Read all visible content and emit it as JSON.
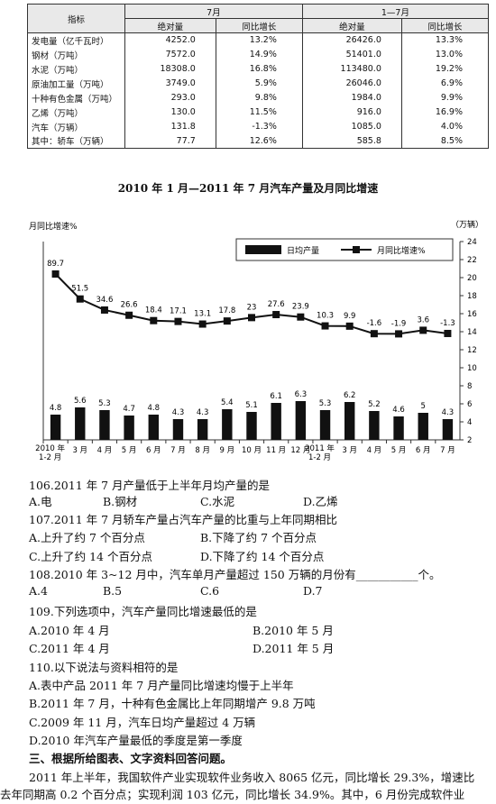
{
  "table": {
    "headers": {
      "indicator": "指标",
      "july": "7月",
      "jan_jul": "1—7月",
      "absolute": "绝对量",
      "yoy": "同比增长"
    },
    "rows": [
      {
        "name": "发电量（亿千瓦时）",
        "jul_abs": "4252.0",
        "jul_yoy": "13.2%",
        "ytd_abs": "26426.0",
        "ytd_yoy": "13.3%"
      },
      {
        "name": "钢材（万吨）",
        "jul_abs": "7572.0",
        "jul_yoy": "14.9%",
        "ytd_abs": "51401.0",
        "ytd_yoy": "13.0%"
      },
      {
        "name": "水泥（万吨）",
        "jul_abs": "18308.0",
        "jul_yoy": "16.8%",
        "ytd_abs": "113480.0",
        "ytd_yoy": "19.2%"
      },
      {
        "name": "原油加工量（万吨）",
        "jul_abs": "3749.0",
        "jul_yoy": "5.9%",
        "ytd_abs": "26046.0",
        "ytd_yoy": "6.9%"
      },
      {
        "name": "十种有色金属（万吨）",
        "jul_abs": "293.0",
        "jul_yoy": "9.8%",
        "ytd_abs": "1984.0",
        "ytd_yoy": "9.9%"
      },
      {
        "name": "乙烯（万吨）",
        "jul_abs": "130.0",
        "jul_yoy": "11.5%",
        "ytd_abs": "916.0",
        "ytd_yoy": "16.9%"
      },
      {
        "name": "汽车（万辆）",
        "jul_abs": "131.8",
        "jul_yoy": "-1.3%",
        "ytd_abs": "1085.0",
        "ytd_yoy": "4.0%"
      },
      {
        "name": "其中：轿车（万辆）",
        "jul_abs": "77.7",
        "jul_yoy": "12.6%",
        "ytd_abs": "585.8",
        "ytd_yoy": "8.5%"
      }
    ]
  },
  "chart_title": "2010 年 1 月—2011 年 7 月汽车产量及月同比增速",
  "chart_data": {
    "type": "bar",
    "ylabel_left": "月同比增速%",
    "ylabel_right": "（万辆）",
    "ylim_right": [
      2,
      24
    ],
    "yticks_right": [
      "2",
      "4",
      "6",
      "8",
      "10",
      "12",
      "14",
      "16",
      "18",
      "20",
      "22",
      "24"
    ],
    "categories": [
      [
        "2010 年",
        "1-2 月"
      ],
      [
        "3 月"
      ],
      [
        "4 月"
      ],
      [
        "5 月"
      ],
      [
        "6 月"
      ],
      [
        "7 月"
      ],
      [
        "8 月"
      ],
      [
        "9 月"
      ],
      [
        "10 月"
      ],
      [
        "11 月"
      ],
      [
        "12 月"
      ],
      [
        "2011 年",
        "1-2 月"
      ],
      [
        "3 月"
      ],
      [
        "4 月"
      ],
      [
        "5 月"
      ],
      [
        "6 月"
      ],
      [
        "7 月"
      ]
    ],
    "series": [
      {
        "name": "日均产量",
        "type": "bar",
        "values": [
          4.8,
          5.6,
          5.3,
          4.7,
          4.8,
          4.3,
          4.3,
          5.4,
          5.1,
          6.1,
          6.3,
          5.3,
          6.2,
          5.2,
          4.6,
          5,
          4.3
        ]
      },
      {
        "name": "月同比增速%",
        "type": "line",
        "values": [
          89.7,
          51.5,
          34.6,
          26.6,
          18.4,
          17.1,
          13.1,
          17.8,
          23.0,
          27.6,
          23.9,
          10.3,
          9.9,
          -1.6,
          -1.9,
          3.6,
          -1.3
        ]
      }
    ],
    "legend_position": "top-right"
  },
  "questions": [
    {
      "stem": "106.2011 年 7 月产量低于上半年月均产量的是",
      "options": [
        "A.电",
        "B.钢材",
        "C.水泥",
        "D.乙烯"
      ]
    },
    {
      "stem": "107.2011 年 7 月轿车产量占汽车产量的比重与上年同期相比",
      "options": [
        "A.上升了约 7 个百分点",
        "B.下降了约 7 个百分点",
        "C.上升了约 14 个百分点",
        "D.下降了约 14 个百分点"
      ]
    },
    {
      "stem": "108.2010 年 3~12 月中，汽车单月产量超过 150 万辆的月份有___________个。",
      "options": [
        "A.4",
        "B.5",
        "C.6",
        "D.7"
      ]
    },
    {
      "stem": "109.下列选项中，汽车产量同比增速最低的是",
      "options": [
        "A.2010 年 4 月",
        "B.2010 年 5 月",
        "C.2011 年 4 月",
        "D.2011 年 5 月"
      ]
    },
    {
      "stem": "110.以下说法与资料相符的是",
      "options": [
        "A.表中产品 2011 年 7 月产量同比增速均慢于上半年",
        "B.2011 年 7 月，十种有色金属比上年同期增产 9.8 万吨",
        "C.2009 年 11 月，汽车日均产量超过 4 万辆",
        "D.2010 年汽车产量最低的季度是第一季度"
      ]
    }
  ],
  "section_heading": "三、根据所给图表、文字资料回答问题。",
  "paragraph": [
    "2011 年上半年，我国软件产业实现软件业务收入 8065 亿元，同比增长 29.3%，增速比",
    "去年同期高 0.2 个百分点；实现利润 103 亿元，同比增长 34.9%。其中，6 月份完成软件业"
  ]
}
